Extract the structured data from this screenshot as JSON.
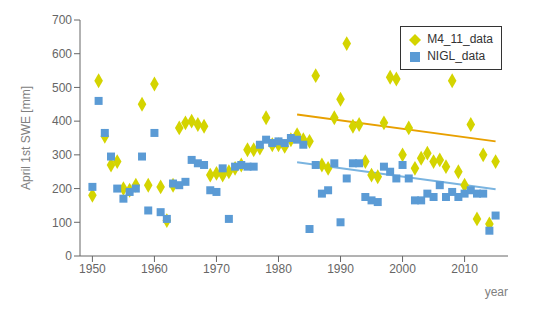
{
  "chart_data": {
    "type": "scatter",
    "xlabel": "year",
    "ylabel": "April 1st SWE [mm]",
    "xlim": [
      1948,
      2017
    ],
    "ylim": [
      0,
      700
    ],
    "xticks": [
      1950,
      1960,
      1970,
      1980,
      1990,
      2000,
      2010
    ],
    "yticks": [
      0,
      100,
      200,
      300,
      400,
      500,
      600,
      700
    ],
    "grid": false,
    "legend": "upper right",
    "series": [
      {
        "type": "line",
        "color": "#e8a000",
        "x": [
          1983,
          2015
        ],
        "values": [
          420,
          340
        ]
      },
      {
        "type": "line",
        "color": "#7ab4e0",
        "x": [
          1983,
          2015
        ],
        "values": [
          278,
          198
        ]
      },
      {
        "name": "M4_11_data",
        "type": "scatter",
        "color": "#d4d400",
        "marker": "diamond",
        "x": [
          1950,
          1951,
          1952,
          1953,
          1954,
          1955,
          1956,
          1957,
          1958,
          1959,
          1960,
          1961,
          1962,
          1963,
          1964,
          1965,
          1966,
          1967,
          1968,
          1969,
          1970,
          1971,
          1972,
          1973,
          1974,
          1975,
          1976,
          1977,
          1978,
          1979,
          1980,
          1981,
          1982,
          1983,
          1984,
          1985,
          1986,
          1987,
          1988,
          1989,
          1990,
          1991,
          1992,
          1993,
          1994,
          1995,
          1996,
          1997,
          1998,
          1999,
          2000,
          2001,
          2002,
          2003,
          2004,
          2005,
          2006,
          2007,
          2008,
          2009,
          2010,
          2011,
          2012,
          2013,
          2014,
          2015
        ],
        "values": [
          180,
          520,
          355,
          270,
          280,
          200,
          195,
          210,
          450,
          210,
          510,
          205,
          105,
          210,
          380,
          395,
          400,
          390,
          385,
          240,
          245,
          240,
          250,
          260,
          270,
          315,
          315,
          320,
          410,
          330,
          330,
          325,
          345,
          360,
          345,
          340,
          535,
          270,
          260,
          410,
          465,
          630,
          385,
          390,
          280,
          240,
          235,
          395,
          530,
          525,
          300,
          380,
          260,
          290,
          305,
          280,
          285,
          265,
          520,
          250,
          210,
          390,
          110,
          300,
          95,
          280
        ]
      },
      {
        "name": "NIGL_data",
        "type": "scatter",
        "color": "#5b9bd5",
        "marker": "square",
        "x": [
          1950,
          1951,
          1952,
          1953,
          1954,
          1955,
          1956,
          1957,
          1958,
          1959,
          1960,
          1961,
          1962,
          1963,
          1964,
          1965,
          1966,
          1967,
          1968,
          1969,
          1970,
          1971,
          1972,
          1973,
          1974,
          1975,
          1976,
          1977,
          1978,
          1979,
          1980,
          1981,
          1982,
          1983,
          1984,
          1985,
          1986,
          1987,
          1988,
          1989,
          1990,
          1991,
          1992,
          1993,
          1994,
          1995,
          1996,
          1997,
          1998,
          1999,
          2000,
          2001,
          2002,
          2003,
          2004,
          2005,
          2006,
          2007,
          2008,
          2009,
          2010,
          2011,
          2012,
          2013,
          2014,
          2015
        ],
        "values": [
          205,
          460,
          365,
          295,
          200,
          170,
          190,
          200,
          295,
          135,
          365,
          130,
          110,
          215,
          210,
          220,
          285,
          275,
          270,
          195,
          190,
          260,
          110,
          265,
          270,
          265,
          265,
          330,
          345,
          335,
          340,
          335,
          350,
          345,
          330,
          80,
          270,
          185,
          195,
          275,
          100,
          230,
          275,
          275,
          175,
          165,
          160,
          265,
          250,
          230,
          270,
          230,
          165,
          165,
          185,
          175,
          210,
          175,
          190,
          175,
          185,
          195,
          185,
          185,
          75,
          120
        ]
      }
    ]
  }
}
